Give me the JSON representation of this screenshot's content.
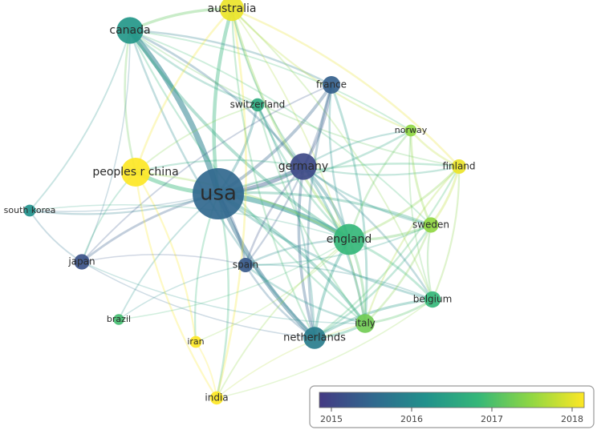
{
  "nodes": [
    {
      "id": "usa",
      "label": "usa",
      "year": 2015.6,
      "weight": 1.0
    },
    {
      "id": "canada",
      "label": "canada",
      "year": 2016.3,
      "weight": 0.45
    },
    {
      "id": "australia",
      "label": "australia",
      "year": 2017.9,
      "weight": 0.4
    },
    {
      "id": "france",
      "label": "france",
      "year": 2015.5,
      "weight": 0.25
    },
    {
      "id": "switzerland",
      "label": "switzerland",
      "year": 2016.6,
      "weight": 0.15
    },
    {
      "id": "norway",
      "label": "norway",
      "year": 2017.4,
      "weight": 0.12
    },
    {
      "id": "finland",
      "label": "finland",
      "year": 2017.9,
      "weight": 0.18
    },
    {
      "id": "peoples-r-china",
      "label": "peoples r china",
      "year": 2018.0,
      "weight": 0.5
    },
    {
      "id": "germany",
      "label": "germany",
      "year": 2015.2,
      "weight": 0.45
    },
    {
      "id": "south-korea",
      "label": "south korea",
      "year": 2016.2,
      "weight": 0.12
    },
    {
      "id": "sweden",
      "label": "sweden",
      "year": 2017.4,
      "weight": 0.2
    },
    {
      "id": "england",
      "label": "england",
      "year": 2016.8,
      "weight": 0.55
    },
    {
      "id": "japan",
      "label": "japan",
      "year": 2015.3,
      "weight": 0.2
    },
    {
      "id": "spain",
      "label": "spain",
      "year": 2015.4,
      "weight": 0.18
    },
    {
      "id": "belgium",
      "label": "belgium",
      "year": 2016.8,
      "weight": 0.22
    },
    {
      "id": "brazil",
      "label": "brazil",
      "year": 2016.9,
      "weight": 0.1
    },
    {
      "id": "italy",
      "label": "italy",
      "year": 2017.2,
      "weight": 0.28
    },
    {
      "id": "netherlands",
      "label": "netherlands",
      "year": 2015.9,
      "weight": 0.35
    },
    {
      "id": "iran",
      "label": "iran",
      "year": 2018.0,
      "weight": 0.12
    },
    {
      "id": "india",
      "label": "india",
      "year": 2018.0,
      "weight": 0.15
    }
  ],
  "links": [
    {
      "source": "usa",
      "target": "canada",
      "strength": 1.0
    },
    {
      "source": "usa",
      "target": "england",
      "strength": 0.9
    },
    {
      "source": "usa",
      "target": "germany",
      "strength": 0.7
    },
    {
      "source": "usa",
      "target": "peoples-r-china",
      "strength": 0.7
    },
    {
      "source": "usa",
      "target": "netherlands",
      "strength": 0.75
    },
    {
      "source": "usa",
      "target": "australia",
      "strength": 0.6
    },
    {
      "source": "usa",
      "target": "france",
      "strength": 0.5
    },
    {
      "source": "usa",
      "target": "italy",
      "strength": 0.5
    },
    {
      "source": "usa",
      "target": "switzerland",
      "strength": 0.4
    },
    {
      "source": "usa",
      "target": "spain",
      "strength": 0.4
    },
    {
      "source": "usa",
      "target": "japan",
      "strength": 0.35
    },
    {
      "source": "usa",
      "target": "sweden",
      "strength": 0.4
    },
    {
      "source": "usa",
      "target": "belgium",
      "strength": 0.35
    },
    {
      "source": "usa",
      "target": "south-korea",
      "strength": 0.25
    },
    {
      "source": "usa",
      "target": "iran",
      "strength": 0.25
    },
    {
      "source": "usa",
      "target": "india",
      "strength": 0.3
    },
    {
      "source": "usa",
      "target": "brazil",
      "strength": 0.2
    },
    {
      "source": "usa",
      "target": "finland",
      "strength": 0.3
    },
    {
      "source": "usa",
      "target": "norway",
      "strength": 0.3
    },
    {
      "source": "canada",
      "target": "australia",
      "strength": 0.45
    },
    {
      "source": "canada",
      "target": "england",
      "strength": 0.5
    },
    {
      "source": "canada",
      "target": "france",
      "strength": 0.3
    },
    {
      "source": "canada",
      "target": "switzerland",
      "strength": 0.3
    },
    {
      "source": "canada",
      "target": "germany",
      "strength": 0.35
    },
    {
      "source": "canada",
      "target": "netherlands",
      "strength": 0.3
    },
    {
      "source": "canada",
      "target": "south-korea",
      "strength": 0.2
    },
    {
      "source": "canada",
      "target": "peoples-r-china",
      "strength": 0.3
    },
    {
      "source": "canada",
      "target": "sweden",
      "strength": 0.2
    },
    {
      "source": "canada",
      "target": "italy",
      "strength": 0.25
    },
    {
      "source": "canada",
      "target": "japan",
      "strength": 0.15
    },
    {
      "source": "canada",
      "target": "finland",
      "strength": 0.2
    },
    {
      "source": "canada",
      "target": "norway",
      "strength": 0.2
    },
    {
      "source": "australia",
      "target": "england",
      "strength": 0.4
    },
    {
      "source": "australia",
      "target": "finland",
      "strength": 0.3
    },
    {
      "source": "australia",
      "target": "norway",
      "strength": 0.25
    },
    {
      "source": "australia",
      "target": "india",
      "strength": 0.3
    },
    {
      "source": "australia",
      "target": "peoples-r-china",
      "strength": 0.3
    },
    {
      "source": "australia",
      "target": "italy",
      "strength": 0.2
    },
    {
      "source": "australia",
      "target": "netherlands",
      "strength": 0.25
    },
    {
      "source": "australia",
      "target": "belgium",
      "strength": 0.2
    },
    {
      "source": "australia",
      "target": "germany",
      "strength": 0.2
    },
    {
      "source": "france",
      "target": "germany",
      "strength": 0.4
    },
    {
      "source": "france",
      "target": "netherlands",
      "strength": 0.35
    },
    {
      "source": "france",
      "target": "italy",
      "strength": 0.35
    },
    {
      "source": "france",
      "target": "england",
      "strength": 0.3
    },
    {
      "source": "france",
      "target": "spain",
      "strength": 0.25
    },
    {
      "source": "france",
      "target": "japan",
      "strength": 0.2
    },
    {
      "source": "germany",
      "target": "england",
      "strength": 0.5
    },
    {
      "source": "germany",
      "target": "netherlands",
      "strength": 0.45
    },
    {
      "source": "germany",
      "target": "italy",
      "strength": 0.4
    },
    {
      "source": "germany",
      "target": "sweden",
      "strength": 0.3
    },
    {
      "source": "germany",
      "target": "belgium",
      "strength": 0.3
    },
    {
      "source": "germany",
      "target": "finland",
      "strength": 0.25
    },
    {
      "source": "germany",
      "target": "norway",
      "strength": 0.25
    },
    {
      "source": "germany",
      "target": "spain",
      "strength": 0.3
    },
    {
      "source": "germany",
      "target": "switzerland",
      "strength": 0.3
    },
    {
      "source": "england",
      "target": "netherlands",
      "strength": 0.45
    },
    {
      "source": "england",
      "target": "italy",
      "strength": 0.4
    },
    {
      "source": "england",
      "target": "sweden",
      "strength": 0.4
    },
    {
      "source": "england",
      "target": "belgium",
      "strength": 0.35
    },
    {
      "source": "england",
      "target": "finland",
      "strength": 0.35
    },
    {
      "source": "england",
      "target": "norway",
      "strength": 0.3
    },
    {
      "source": "england",
      "target": "spain",
      "strength": 0.3
    },
    {
      "source": "england",
      "target": "switzerland",
      "strength": 0.3
    },
    {
      "source": "netherlands",
      "target": "italy",
      "strength": 0.4
    },
    {
      "source": "netherlands",
      "target": "belgium",
      "strength": 0.4
    },
    {
      "source": "netherlands",
      "target": "sweden",
      "strength": 0.3
    },
    {
      "source": "netherlands",
      "target": "spain",
      "strength": 0.3
    },
    {
      "source": "netherlands",
      "target": "finland",
      "strength": 0.25
    },
    {
      "source": "netherlands",
      "target": "japan",
      "strength": 0.15
    },
    {
      "source": "italy",
      "target": "belgium",
      "strength": 0.35
    },
    {
      "source": "italy",
      "target": "spain",
      "strength": 0.3
    },
    {
      "source": "italy",
      "target": "sweden",
      "strength": 0.3
    },
    {
      "source": "italy",
      "target": "finland",
      "strength": 0.25
    },
    {
      "source": "sweden",
      "target": "finland",
      "strength": 0.35
    },
    {
      "source": "sweden",
      "target": "norway",
      "strength": 0.35
    },
    {
      "source": "sweden",
      "target": "belgium",
      "strength": 0.25
    },
    {
      "source": "finland",
      "target": "norway",
      "strength": 0.3
    },
    {
      "source": "switzerland",
      "target": "italy",
      "strength": 0.25
    },
    {
      "source": "switzerland",
      "target": "netherlands",
      "strength": 0.25
    },
    {
      "source": "switzerland",
      "target": "peoples-r-china",
      "strength": 0.2
    },
    {
      "source": "peoples-r-china",
      "target": "iran",
      "strength": 0.25
    },
    {
      "source": "peoples-r-china",
      "target": "india",
      "strength": 0.25
    },
    {
      "source": "peoples-r-china",
      "target": "england",
      "strength": 0.3
    },
    {
      "source": "peoples-r-china",
      "target": "japan",
      "strength": 0.2
    },
    {
      "source": "peoples-r-china",
      "target": "germany",
      "strength": 0.25
    },
    {
      "source": "south-korea",
      "target": "japan",
      "strength": 0.2
    },
    {
      "source": "south-korea",
      "target": "england",
      "strength": 0.15
    },
    {
      "source": "south-korea",
      "target": "germany",
      "strength": 0.15
    },
    {
      "source": "japan",
      "target": "spain",
      "strength": 0.15
    },
    {
      "source": "japan",
      "target": "italy",
      "strength": 0.15
    },
    {
      "source": "brazil",
      "target": "spain",
      "strength": 0.15
    },
    {
      "source": "brazil",
      "target": "england",
      "strength": 0.15
    },
    {
      "source": "iran",
      "target": "india",
      "strength": 0.2
    },
    {
      "source": "iran",
      "target": "england",
      "strength": 0.15
    },
    {
      "source": "india",
      "target": "england",
      "strength": 0.2
    },
    {
      "source": "india",
      "target": "belgium",
      "strength": 0.15
    },
    {
      "source": "india",
      "target": "italy",
      "strength": 0.15
    },
    {
      "source": "belgium",
      "target": "finland",
      "strength": 0.25
    },
    {
      "source": "belgium",
      "target": "norway",
      "strength": 0.2
    },
    {
      "source": "spain",
      "target": "sweden",
      "strength": 0.2
    },
    {
      "source": "spain",
      "target": "belgium",
      "strength": 0.2
    }
  ],
  "legend": {
    "min_year": 2015,
    "max_year": 2018,
    "ticks": [
      "2015",
      "2016",
      "2017",
      "2018"
    ]
  },
  "colors": {
    "scale": [
      "#443a83",
      "#31688e",
      "#21918c",
      "#35b779",
      "#90d743",
      "#fde725"
    ],
    "label_text": "#2b2b2b",
    "legend_border": "#9a9a9a"
  }
}
